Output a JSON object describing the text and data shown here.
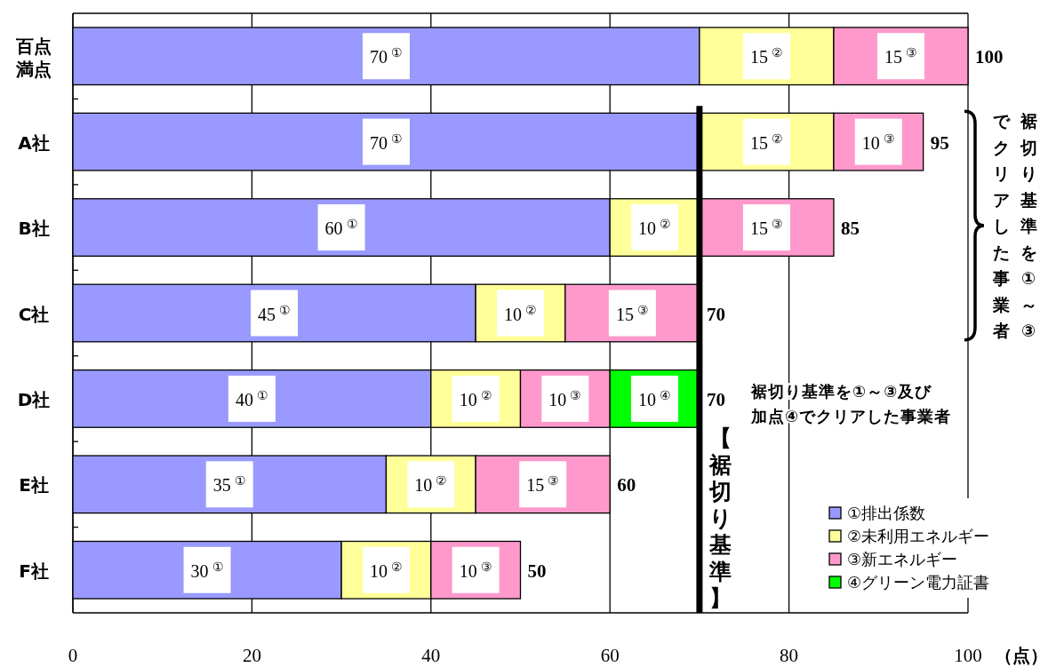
{
  "chart_data": {
    "type": "bar",
    "orientation": "horizontal",
    "stacked": true,
    "categories": [
      "百点満点",
      "A社",
      "B社",
      "C社",
      "D社",
      "E社",
      "F社"
    ],
    "series": [
      {
        "name": "①排出係数",
        "color": "#9999ff",
        "values": [
          70,
          70,
          60,
          45,
          40,
          35,
          30
        ],
        "value_labels": [
          "70$^{①}$",
          "70$^{①}$",
          "60$^{①}$",
          "45$^{①}$",
          "40$^{①}$",
          "35$^{①}$",
          "30$^{①}$"
        ]
      },
      {
        "name": "②未利用エネルギー",
        "color": "#ffff99",
        "values": [
          15,
          15,
          10,
          10,
          10,
          10,
          10
        ],
        "value_labels": [
          "15$^{②}$",
          "15$^{②}$",
          "10$^{②}$",
          "10$^{②}$",
          "10$^{②}$",
          "10$^{②}$",
          "10$^{②}$"
        ]
      },
      {
        "name": "③新エネルギー",
        "color": "#ff99cc",
        "values": [
          15,
          10,
          15,
          15,
          10,
          15,
          10
        ],
        "value_labels": [
          "15$^{③}$",
          "10$^{③}$",
          "15$^{③}$",
          "15$^{③}$",
          "10$^{③}$",
          "15$^{③}$",
          "10$^{③}$"
        ]
      },
      {
        "name": "④グリーン電力証書",
        "color": "#00ff00",
        "values": [
          null,
          null,
          null,
          null,
          10,
          null,
          null
        ],
        "value_labels": [
          null,
          null,
          null,
          null,
          "10$^{④}$",
          null,
          null
        ]
      }
    ],
    "totals": [
      "100",
      "95",
      "85",
      "70",
      "70",
      "60",
      "50"
    ],
    "xlim": [
      0,
      100
    ],
    "xticks": [
      0,
      20,
      40,
      60,
      80,
      100
    ],
    "xlabel": "（点）",
    "grid": "x",
    "legend": "bottom right",
    "ref_lines": [
      {
        "axis": "x",
        "value": 70,
        "label": "【裾切り基準】"
      }
    ],
    "annotations": [
      "裾切り基準を①～③",
      "でクリアした事業者",
      "裾切り基準を①～③及び加点④でクリアした事業者"
    ]
  }
}
